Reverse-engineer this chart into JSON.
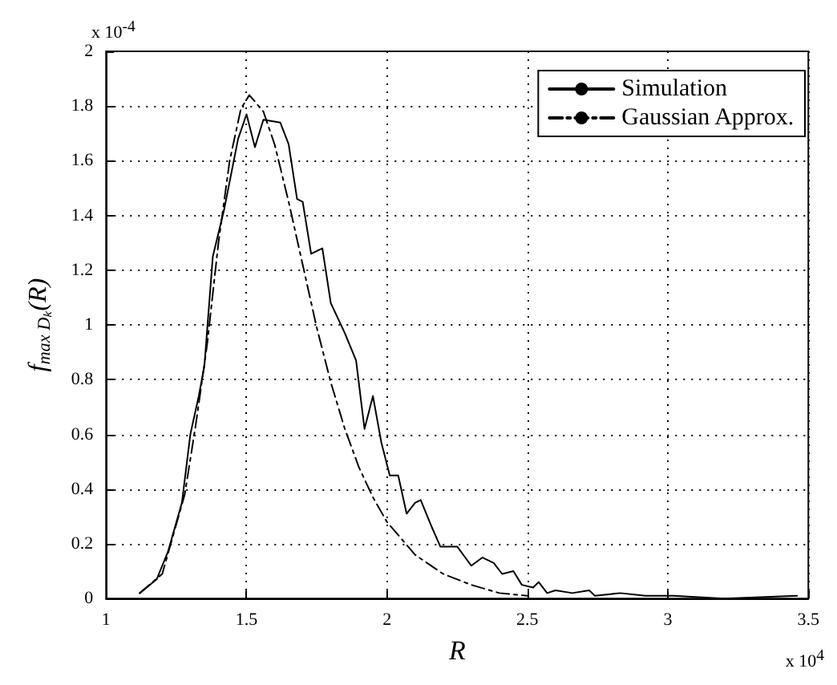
{
  "chart_data": {
    "type": "line",
    "xlabel": "R",
    "ylabel": "f$_{max Dₖ}$(R)",
    "xlim": [
      1,
      3.5
    ],
    "xticks": [
      1,
      1.5,
      2,
      2.5,
      3,
      3.5
    ],
    "ylim": [
      0,
      2
    ],
    "yticks": [
      0,
      0.2,
      0.4,
      0.6,
      0.8,
      1,
      1.2,
      1.4,
      1.6,
      1.8,
      2
    ],
    "grid": true,
    "legend": "top right",
    "marker": "none",
    "annotations": [
      "x 10$^{-4}$",
      "x 10$^{4}$"
    ],
    "series": [
      {
        "name": "Simulation",
        "color": "#000000",
        "line_style": "solid",
        "x": [
          1.12,
          1.18,
          1.22,
          1.27,
          1.3,
          1.33,
          1.35,
          1.38,
          1.42,
          1.47,
          1.5,
          1.53,
          1.56,
          1.62,
          1.65,
          1.68,
          1.7,
          1.73,
          1.77,
          1.8,
          1.85,
          1.89,
          1.92,
          1.95,
          1.98,
          2.01,
          2.04,
          2.07,
          2.1,
          2.12,
          2.16,
          2.19,
          2.25,
          2.3,
          2.34,
          2.38,
          2.41,
          2.45,
          2.48,
          2.52,
          2.54,
          2.57,
          2.6,
          2.66,
          2.72,
          2.74,
          2.83,
          2.92,
          3.02,
          3.2,
          3.46
        ],
        "values": [
          0.02,
          0.07,
          0.17,
          0.35,
          0.6,
          0.74,
          0.85,
          1.25,
          1.42,
          1.68,
          1.77,
          1.65,
          1.75,
          1.74,
          1.66,
          1.46,
          1.45,
          1.26,
          1.28,
          1.08,
          0.97,
          0.87,
          0.62,
          0.74,
          0.57,
          0.45,
          0.45,
          0.31,
          0.35,
          0.36,
          0.26,
          0.19,
          0.19,
          0.12,
          0.15,
          0.13,
          0.09,
          0.1,
          0.05,
          0.04,
          0.06,
          0.02,
          0.03,
          0.02,
          0.03,
          0.01,
          0.02,
          0.01,
          0.01,
          0,
          0.01
        ]
      },
      {
        "name": "Gaussian Approx.",
        "color": "#000000",
        "line_style": "dashed",
        "x": [
          1.12,
          1.2,
          1.28,
          1.32,
          1.36,
          1.4,
          1.44,
          1.48,
          1.51,
          1.56,
          1.6,
          1.65,
          1.7,
          1.75,
          1.8,
          1.85,
          1.9,
          1.95,
          2.0,
          2.1,
          2.2,
          2.3,
          2.4,
          2.5
        ],
        "values": [
          0.02,
          0.09,
          0.38,
          0.64,
          0.93,
          1.3,
          1.6,
          1.79,
          1.84,
          1.78,
          1.66,
          1.45,
          1.22,
          0.99,
          0.79,
          0.62,
          0.48,
          0.37,
          0.28,
          0.16,
          0.09,
          0.05,
          0.02,
          0.01
        ]
      }
    ]
  }
}
